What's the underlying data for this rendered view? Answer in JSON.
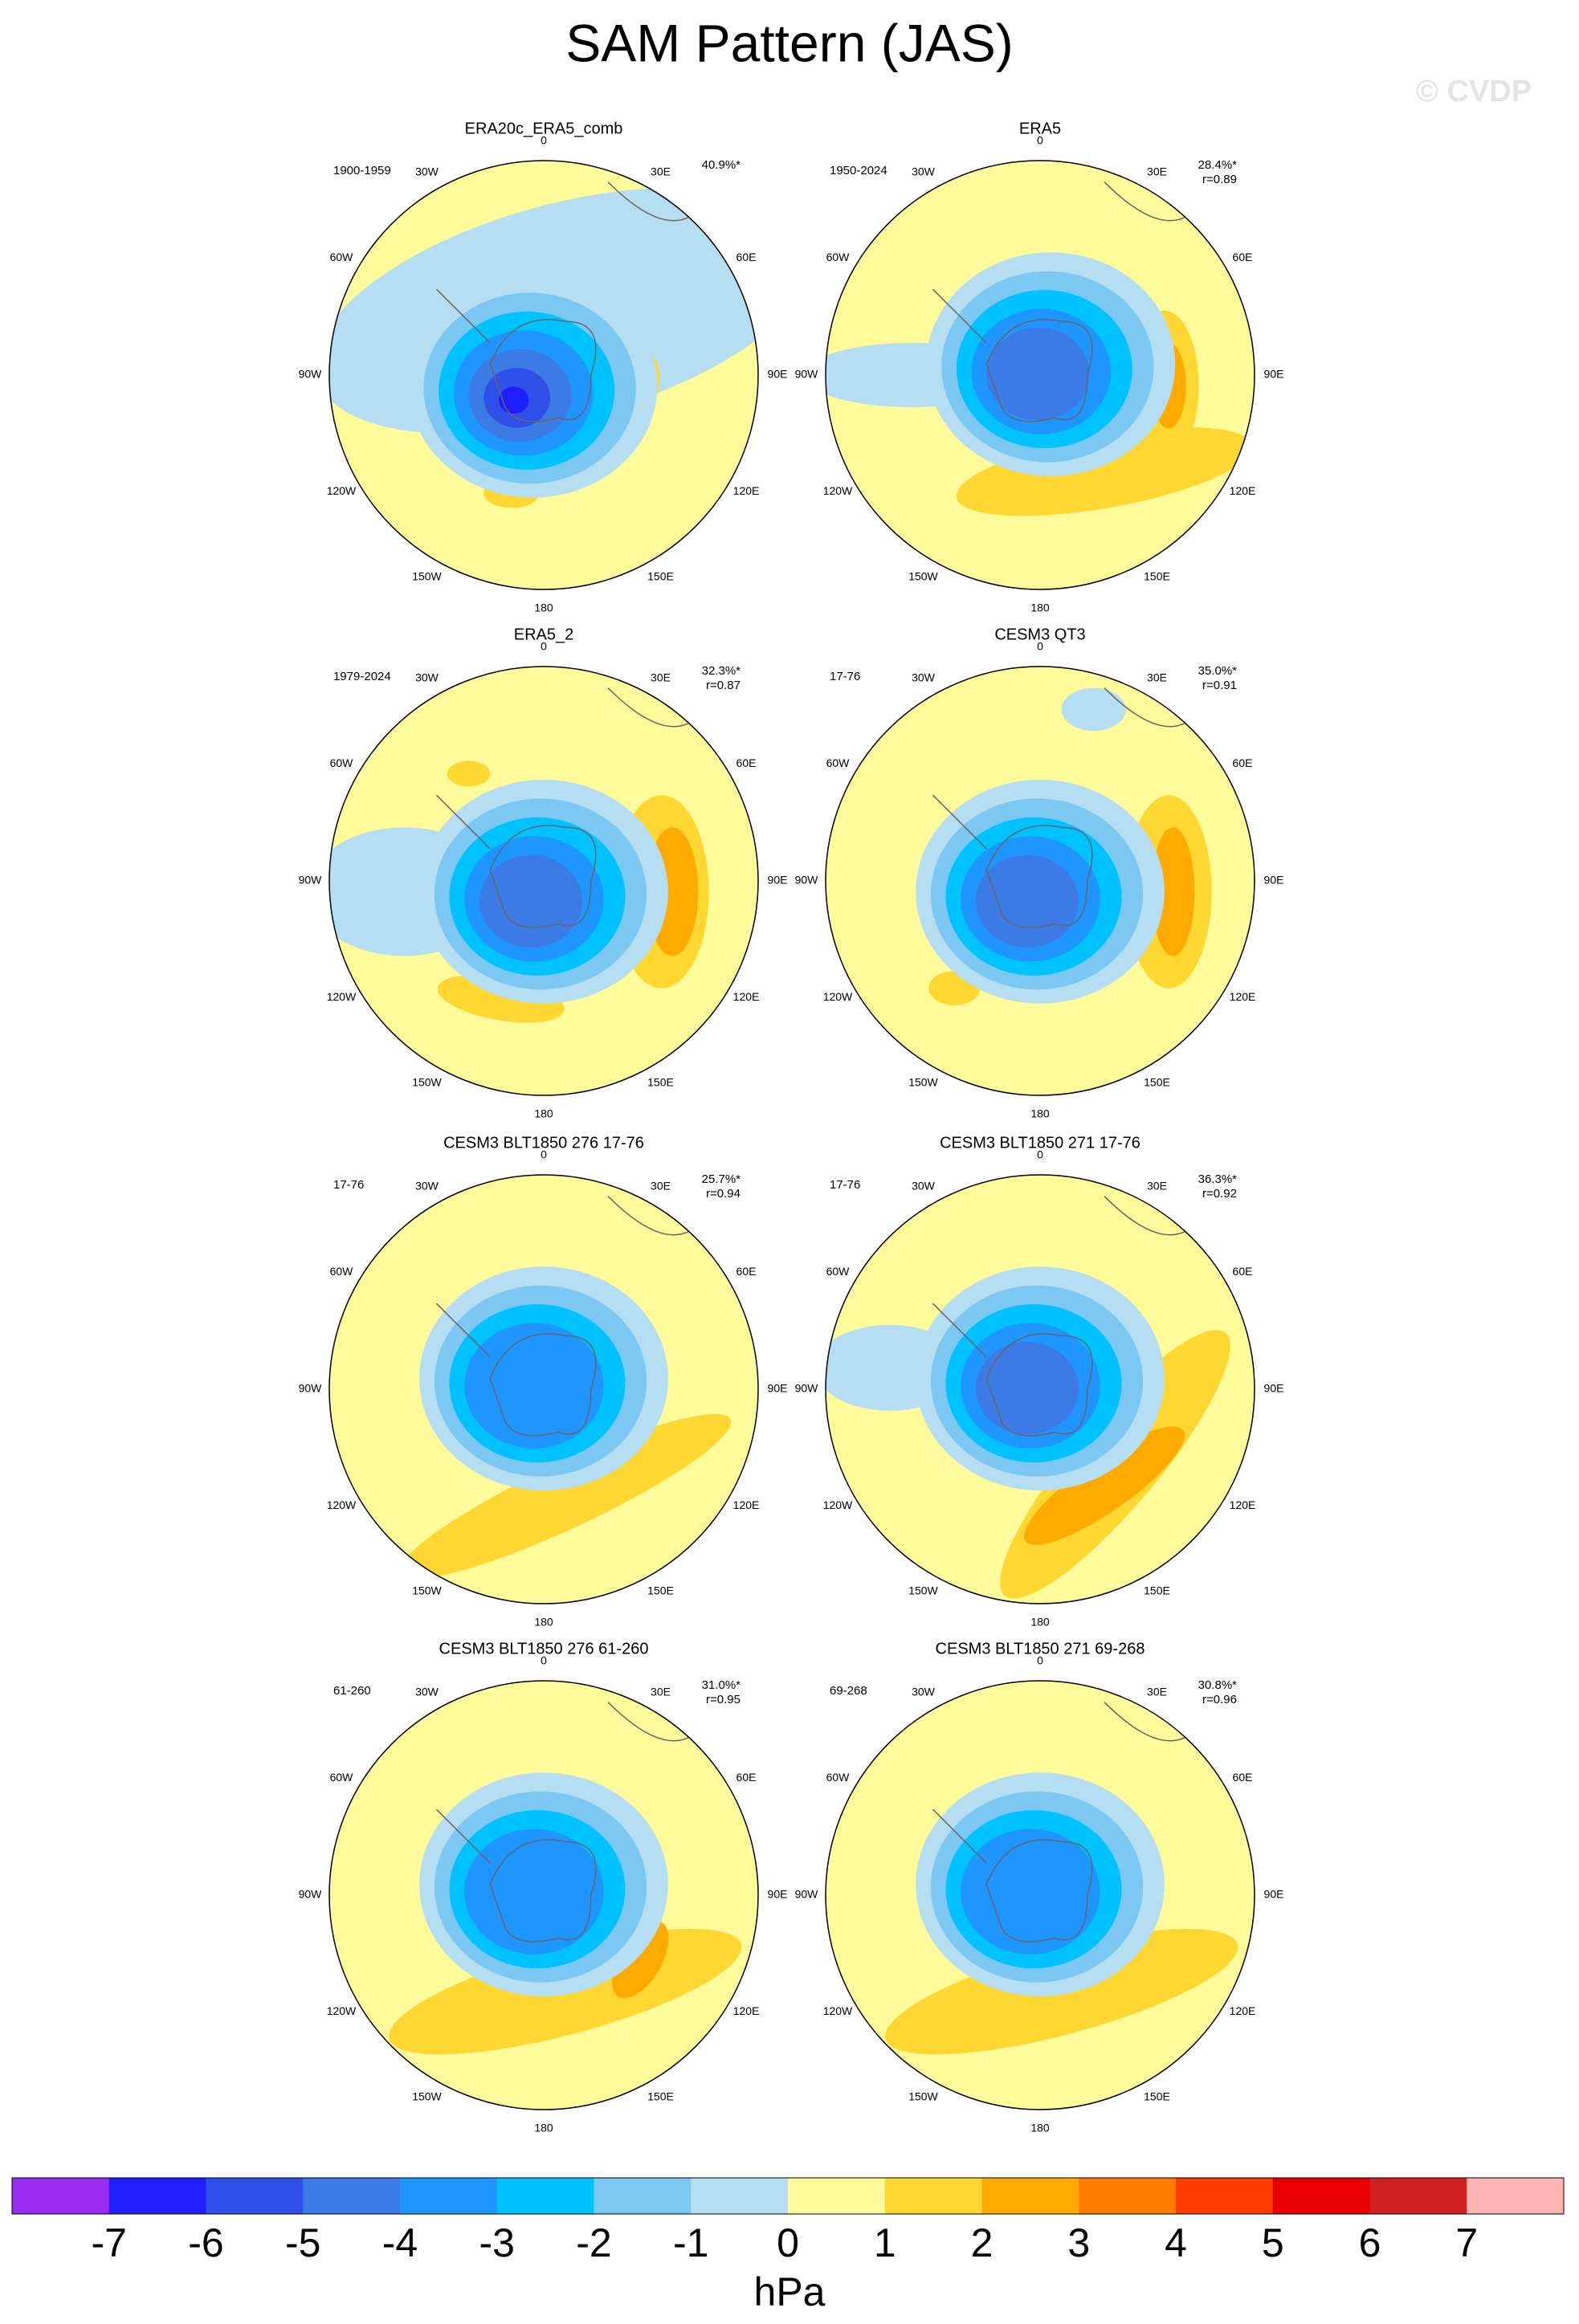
{
  "title": "SAM Pattern (JAS)",
  "watermark": "© CVDP",
  "longitude_labels": [
    "0",
    "30E",
    "60E",
    "90E",
    "120E",
    "150E",
    "180",
    "150W",
    "120W",
    "90W",
    "60W",
    "30W"
  ],
  "panels": [
    {
      "title": "ERA20c_ERA5_comb",
      "period": "1900-1959",
      "variance": "40.9%*"
    },
    {
      "title": "ERA5",
      "period": "1950-2024",
      "variance": "28.4%*",
      "correlation": "r=0.89"
    },
    {
      "title": "ERA5_2",
      "period": "1979-2024",
      "variance": "32.3%*",
      "correlation": "r=0.87"
    },
    {
      "title": "CESM3 QT3",
      "period": "17-76",
      "variance": "35.0%*",
      "correlation": "r=0.91"
    },
    {
      "title": "CESM3 BLT1850 276 17-76",
      "period": "17-76",
      "variance": "25.7%*",
      "correlation": "r=0.94"
    },
    {
      "title": "CESM3 BLT1850 271 17-76",
      "period": "17-76",
      "variance": "36.3%*",
      "correlation": "r=0.92"
    },
    {
      "title": "CESM3 BLT1850 276 61-260",
      "period": "61-260",
      "variance": "31.0%*",
      "correlation": "r=0.95"
    },
    {
      "title": "CESM3 BLT1850 271 69-268",
      "period": "69-268",
      "variance": "30.8%*",
      "correlation": "r=0.96"
    }
  ],
  "colorbar": {
    "colors": [
      "#9a2cf0",
      "#1e1eff",
      "#2e4fe8",
      "#3c7ae6",
      "#1f96ff",
      "#00c2ff",
      "#7cc8f2",
      "#b6def2",
      "#fffa9a",
      "#ffd733",
      "#ffaa00",
      "#ff7c00",
      "#ff3c00",
      "#e80000",
      "#d02020",
      "#ffb4b4"
    ],
    "ticks": [
      -7,
      -6,
      -5,
      -4,
      -3,
      -2,
      -1,
      0,
      1,
      2,
      3,
      4,
      5,
      6,
      7
    ],
    "unit": "hPa"
  }
}
